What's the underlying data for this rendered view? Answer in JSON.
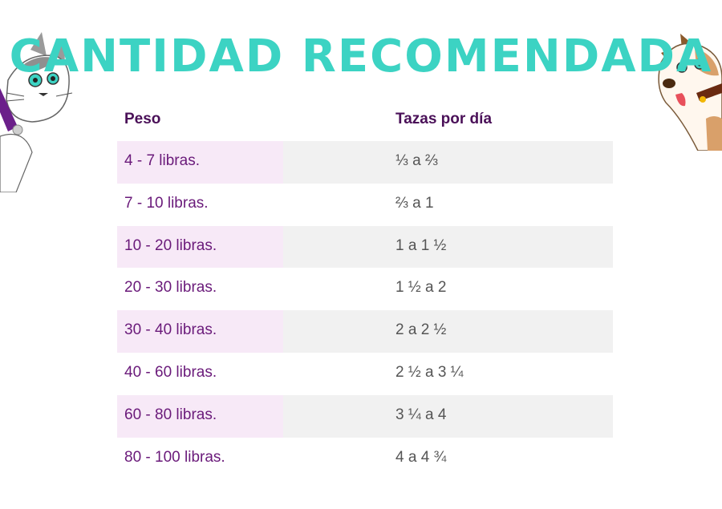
{
  "title": "CANTIDAD RECOMENDADA",
  "table": {
    "headers": [
      "Peso",
      "Tazas por día"
    ],
    "rows": [
      {
        "weight": "4 - 7 libras.",
        "cups": "⅓ a ⅔"
      },
      {
        "weight": "7 - 10 libras.",
        "cups": "⅔ a 1"
      },
      {
        "weight": "10 - 20 libras.",
        "cups": "1 a 1 ½"
      },
      {
        "weight": "20 - 30 libras.",
        "cups": "1 ½ a 2"
      },
      {
        "weight": "30 - 40 libras.",
        "cups": "2 a 2 ½"
      },
      {
        "weight": "40 - 60 libras.",
        "cups": "2 ½ a 3 ¼"
      },
      {
        "weight": "60 - 80 libras.",
        "cups": "3 ¼ a 4"
      },
      {
        "weight": "80 - 100 libras.",
        "cups": "4 a 4 ¾"
      }
    ]
  },
  "colors": {
    "title": "#3cd3c3",
    "header_text": "#4a1058",
    "weight_text": "#6a1a7a",
    "cups_text": "#555555",
    "shade_weight": "#f7e9f7",
    "shade_cups": "#f1f1f1"
  },
  "decorations": [
    "cat-mascot-icon",
    "dog-mascot-icon"
  ]
}
